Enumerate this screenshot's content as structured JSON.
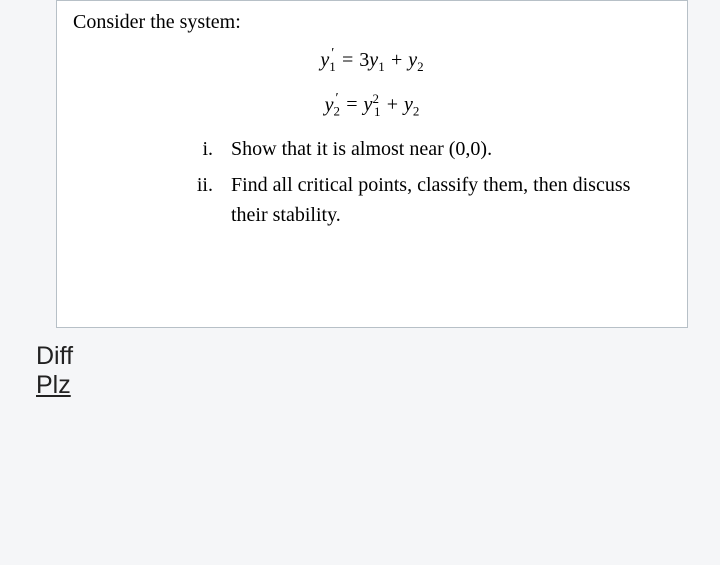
{
  "problem": {
    "prompt": "Consider the system:",
    "eq1": {
      "lhs_y": "y",
      "lhs_sub": "1",
      "lhs_prime": "′",
      "equals": " = ",
      "term1_coef": "3",
      "term1_y": "y",
      "term1_sub": "1",
      "plus": " + ",
      "term2_y": "y",
      "term2_sub": "2"
    },
    "eq2": {
      "lhs_y": "y",
      "lhs_sub": "2",
      "lhs_prime": "′",
      "equals": " = ",
      "term1_y": "y",
      "term1_sub": "1",
      "term1_sup": "2",
      "plus": " + ",
      "term2_y": "y",
      "term2_sub": "2"
    },
    "items": {
      "i": {
        "roman": "i.",
        "text": "Show that it is almost near (0,0)."
      },
      "ii": {
        "roman": "ii.",
        "text": "Find all critical points, classify them, then discuss their stability."
      }
    }
  },
  "caption": {
    "line1": "Diff",
    "line2": "Plz"
  },
  "colors": {
    "page_bg": "#f5f6f8",
    "box_bg": "#ffffff",
    "box_border": "#b7c0c7",
    "text": "#000000"
  }
}
